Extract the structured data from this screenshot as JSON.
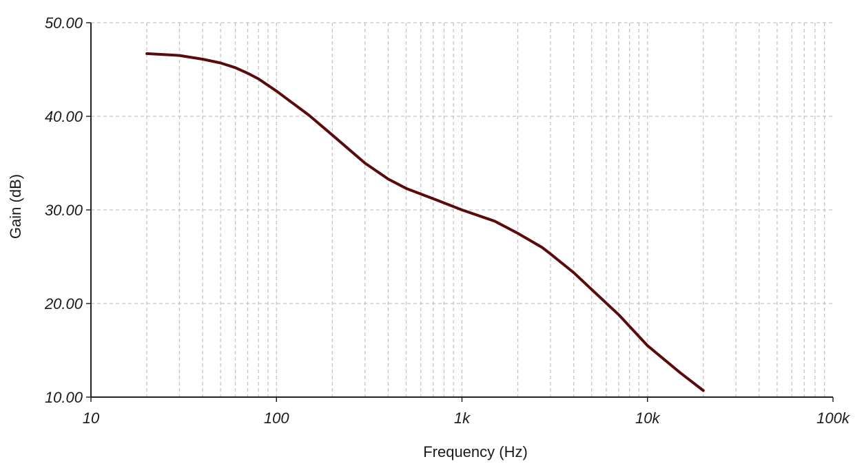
{
  "chart_data": {
    "type": "line",
    "xlabel": "Frequency (Hz)",
    "ylabel": "Gain (dB)",
    "x_scale": "log",
    "xlim": [
      10,
      100000
    ],
    "ylim": [
      10,
      50
    ],
    "grid": true,
    "line_color": "#5a0a0a",
    "x_ticks": [
      {
        "value": 10,
        "label": "10"
      },
      {
        "value": 100,
        "label": "100"
      },
      {
        "value": 1000,
        "label": "1k"
      },
      {
        "value": 10000,
        "label": "10k"
      },
      {
        "value": 100000,
        "label": "100k"
      }
    ],
    "y_ticks": [
      {
        "value": 10,
        "label": "10.00"
      },
      {
        "value": 20,
        "label": "20.00"
      },
      {
        "value": 30,
        "label": "30.00"
      },
      {
        "value": 40,
        "label": "40.00"
      },
      {
        "value": 50,
        "label": "50.00"
      }
    ],
    "series": [
      {
        "x": [
          20,
          30,
          40,
          50,
          60,
          70,
          80,
          100,
          150,
          200,
          300,
          400,
          500,
          700,
          1000,
          1500,
          2000,
          2700,
          3000,
          4000,
          5000,
          7000,
          10000,
          15000,
          20000
        ],
        "y": [
          46.7,
          46.5,
          46.1,
          45.7,
          45.2,
          44.6,
          44.0,
          42.7,
          40.1,
          38.0,
          35.0,
          33.3,
          32.3,
          31.2,
          30.0,
          28.8,
          27.5,
          26.0,
          25.3,
          23.3,
          21.5,
          18.8,
          15.5,
          12.6,
          10.7
        ]
      }
    ]
  }
}
